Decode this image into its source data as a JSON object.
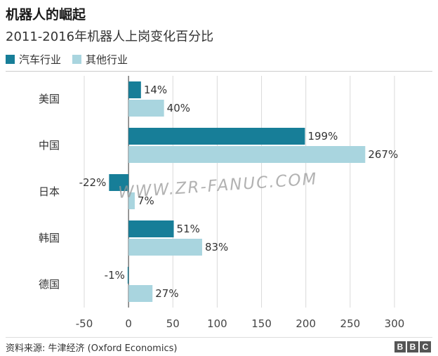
{
  "title": "机器人的崛起",
  "subtitle": "2011-2016年机器人上岗变化百分比",
  "source": "资料来源: 牛津经济 (Oxford Economics)",
  "watermark": "WWW.ZR-FANUC.COM",
  "brand": [
    "B",
    "B",
    "C"
  ],
  "colors": {
    "series1": "#177e98",
    "series2": "#a9d5df"
  },
  "chart_data": {
    "type": "bar",
    "orientation": "horizontal",
    "categories": [
      "美国",
      "中国",
      "日本",
      "韩国",
      "德国"
    ],
    "series": [
      {
        "name": "汽车行业",
        "values": [
          14,
          199,
          -22,
          51,
          -1
        ]
      },
      {
        "name": "其他行业",
        "values": [
          40,
          267,
          7,
          83,
          27
        ]
      }
    ],
    "data_labels": [
      [
        "14%",
        "199%",
        "-22%",
        "51%",
        "-1%"
      ],
      [
        "40%",
        "267%",
        "7%",
        "83%",
        "27%"
      ]
    ],
    "x_ticks": [
      -50,
      0,
      50,
      100,
      150,
      200,
      250,
      300
    ],
    "xlim": [
      -50,
      300
    ],
    "grid": true,
    "legend_position": "top-left"
  }
}
